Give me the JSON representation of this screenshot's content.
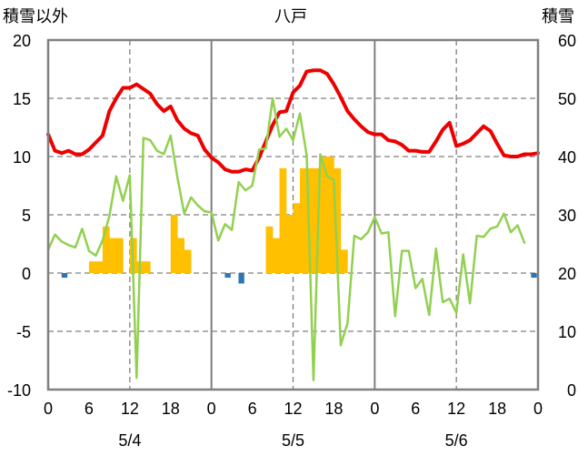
{
  "chart_data": {
    "type": "line",
    "title": "八戸",
    "left_axis_label": "積雪以外",
    "right_axis_label": "積雪",
    "left_ylim": [
      -10,
      20
    ],
    "left_yticks": [
      20,
      15,
      10,
      5,
      0,
      -5,
      -10
    ],
    "right_ylim": [
      0,
      60
    ],
    "right_yticks": [
      60,
      50,
      40,
      30,
      20,
      10,
      0
    ],
    "x_hour_ticks": [
      "0",
      "6",
      "12",
      "18",
      "0",
      "6",
      "12",
      "18",
      "0",
      "6",
      "12",
      "18",
      "0"
    ],
    "x_date_labels": [
      "5/4",
      "5/5",
      "5/6"
    ],
    "grid": "dashed",
    "colors": {
      "red": "#ee0000",
      "green": "#92d050",
      "yellow": "#ffc000",
      "blue": "#2e75b6"
    },
    "series": [
      {
        "kind": "line",
        "color": "red",
        "axis": "left",
        "values": [
          11.9,
          10.5,
          10.3,
          10.5,
          10.2,
          10.2,
          10.6,
          11.2,
          11.8,
          13.9,
          15,
          15.9,
          15.9,
          16.2,
          15.8,
          15.4,
          14.5,
          13.9,
          14.3,
          13.1,
          12.4,
          12,
          11.8,
          10.6,
          9.9,
          9.5,
          8.9,
          8.7,
          8.7,
          8.9,
          8.8,
          9.9,
          11.3,
          12.7,
          13.8,
          13.9,
          15.5,
          16.1,
          17.3,
          17.4,
          17.4,
          17.1,
          16.2,
          15.1,
          13.9,
          13.2,
          12.6,
          12.1,
          11.9,
          11.9,
          11.4,
          11.3,
          11,
          10.5,
          10.5,
          10.4,
          10.4,
          11.3,
          12.3,
          12.9,
          10.9,
          11.1,
          11.4,
          12,
          12.6,
          12.2,
          11.1,
          10.1,
          10,
          10,
          10.2,
          10.2,
          10.3
        ]
      },
      {
        "kind": "line",
        "color": "green",
        "axis": "left",
        "values": [
          2,
          3.3,
          2.7,
          2.4,
          2.2,
          3.8,
          1.9,
          1.5,
          2.8,
          4.9,
          8.3,
          6.2,
          8.4,
          -9,
          11.6,
          11.4,
          10.5,
          10.2,
          11.8,
          8.2,
          5.1,
          6.5,
          5.8,
          5.3,
          5.2,
          2.8,
          4.2,
          3.7,
          7.8,
          7.1,
          7.5,
          10.6,
          10.7,
          15,
          11.7,
          12.4,
          11.4,
          13.7,
          10.1,
          -9.2,
          10.2,
          8.3,
          8,
          -6.2,
          -4.3,
          3.2,
          2.9,
          3.5,
          4.8,
          3.4,
          3.5,
          -3.7,
          1.9,
          1.9,
          -1.3,
          -0.5,
          -3.6,
          2.1,
          -2.5,
          -2.2,
          -3.4,
          1.6,
          -2.6,
          3.2,
          3.1,
          3.8,
          4,
          5.1,
          3.5,
          4.1,
          2.6
        ]
      },
      {
        "kind": "bar",
        "color": "yellow",
        "axis": "left",
        "values": [
          0,
          0,
          0,
          0,
          0,
          0,
          1,
          1,
          4,
          3,
          3,
          0,
          3,
          1,
          1,
          0,
          0,
          0,
          5,
          3,
          2,
          0,
          0,
          0,
          0,
          0,
          0,
          0,
          0,
          0,
          0,
          0,
          4,
          3,
          9,
          5,
          6,
          9,
          9,
          9,
          10,
          10,
          9,
          2,
          0,
          0,
          0,
          0,
          0,
          0,
          0,
          0,
          0,
          0,
          0,
          0,
          0,
          0,
          0,
          0,
          0,
          0,
          0,
          0,
          0,
          0,
          0,
          0,
          0,
          0,
          0,
          0
        ]
      },
      {
        "kind": "bar",
        "color": "blue",
        "axis": "left",
        "values": [
          0,
          0,
          -0.4,
          0,
          0,
          0,
          0,
          0,
          0,
          0,
          0,
          0,
          0,
          0,
          0,
          0,
          0,
          0,
          0,
          0,
          0,
          0,
          0,
          0,
          0,
          0.0,
          -0.4,
          0,
          -0.9,
          0,
          0,
          0,
          0,
          0,
          0,
          0,
          0,
          0,
          0,
          0,
          0,
          0,
          0,
          0,
          0,
          0,
          0,
          0,
          0,
          0,
          0,
          0,
          0,
          0,
          0,
          0,
          0,
          0,
          0,
          0,
          0,
          0,
          0,
          0,
          0,
          0,
          0,
          0,
          0,
          0,
          0,
          -0.4
        ]
      }
    ]
  }
}
